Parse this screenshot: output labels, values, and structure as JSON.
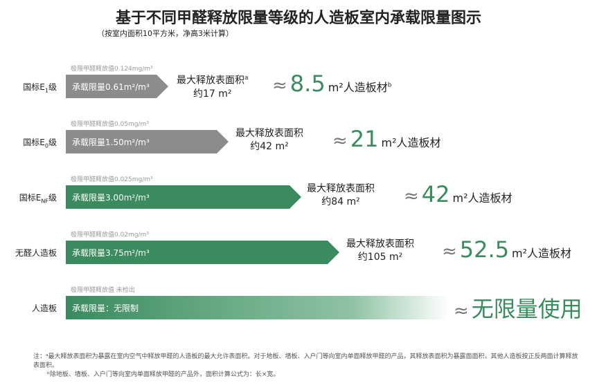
{
  "header": {
    "title": "基于不同甲醛释放限量等级的人造板室内承载限量图示",
    "subtitle": "（按室内面积10平方米，净高3米计算）"
  },
  "rows": [
    {
      "label": "国标E",
      "label_sub": "1",
      "label_end": "级",
      "limit": "极限甲醛释放值0.124mg/m³",
      "capacity": "承载限量0.61m²/m³",
      "area_title": "最大释放表面积",
      "area_note": "a",
      "area": "约17 m²",
      "approx": "≈",
      "result": "8.5",
      "result_unit": "m²人造板材",
      "result_note": "b"
    },
    {
      "label": "国标E",
      "label_sub": "0",
      "label_end": "级",
      "limit": "极限甲醛释放值0.05mg/m³",
      "capacity": "承载限量1.50m²/m³",
      "area_title": "最大释放表面积",
      "area": "约42 m²",
      "approx": "≈",
      "result": "21",
      "result_unit": "m²人造板材"
    },
    {
      "label": "国标E",
      "label_sub": "NF",
      "label_end": "级",
      "limit": "极限甲醛释放值0.025mg/m³",
      "capacity": "承载限量3.00m²/m³",
      "area_title": "最大释放表面积",
      "area": "约84 m²",
      "approx": "≈",
      "result": "42",
      "result_unit": "m²人造板材"
    },
    {
      "label": "无醛人造板",
      "limit": "极限甲醛释放值0.02mg/m³",
      "capacity": "承载限量3.75m²/m³",
      "area_title": "最大释放表面积",
      "area": "约105 m²",
      "approx": "≈",
      "result": "52.5",
      "result_unit": "m²人造板材"
    },
    {
      "label": "人造板",
      "limit": "极限甲醛释放值 未检出",
      "capacity": "承载限量：无限制",
      "approx": "≈",
      "result": "无限量使用"
    }
  ],
  "notes": {
    "prefix": "注：",
    "lines": [
      "ᵃ最大释放表面积为暴露在室内空气中释放甲醛的人造板的最大允许表面积。对于地板、墙板、入户门等向室内单面释放甲醛的产品，其释放表面积为暴露面面积，其他人造板按正反两面计算释放表面积。",
      "ᵇ除地板、墙板、入户门等向室内单面释放甲醛的产品外，面积计算公式为：长×宽。"
    ]
  }
}
